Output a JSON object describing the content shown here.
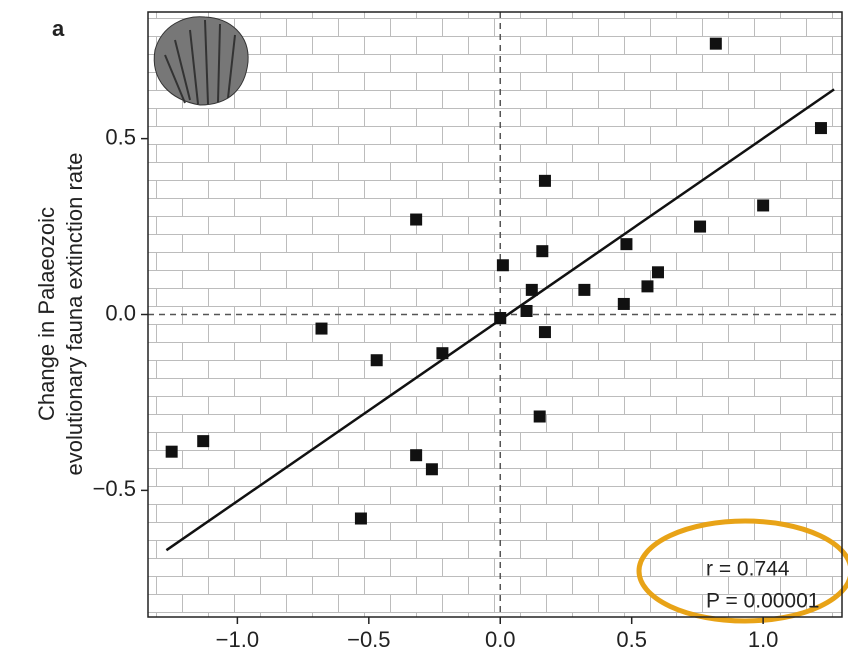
{
  "chart_data": {
    "type": "scatter",
    "panel_label": "a",
    "y_label": [
      "Change in Palaeozoic",
      "evolutionary fauna extinction rate"
    ],
    "x": [
      0.82,
      1.22,
      1.0,
      0.76,
      0.17,
      -0.32,
      0.16,
      0.48,
      0.01,
      0.6,
      0.32,
      0.12,
      0.56,
      0.47,
      0.1,
      0.0,
      0.17,
      -0.68,
      -0.22,
      -0.47,
      0.15,
      -1.13,
      -1.25,
      -0.32,
      -0.26,
      -0.53
    ],
    "y": [
      0.77,
      0.53,
      0.31,
      0.25,
      0.38,
      0.27,
      0.18,
      0.2,
      0.14,
      0.12,
      0.07,
      0.07,
      0.08,
      0.03,
      0.01,
      -0.01,
      -0.05,
      -0.04,
      -0.11,
      -0.13,
      -0.29,
      -0.36,
      -0.39,
      -0.4,
      -0.44,
      -0.58
    ],
    "color": "#111111",
    "fit_line": {
      "x": [
        -1.27,
        1.27
      ],
      "y": [
        -0.67,
        0.64
      ]
    },
    "reference_lines": {
      "x": 0,
      "y": 0
    },
    "xlim": [
      -1.34,
      1.3
    ],
    "ylim": [
      -0.86,
      0.86
    ],
    "xticks": [
      {
        "value": -1,
        "label": "−1.0"
      },
      {
        "value": -0.5,
        "label": "−0.5"
      },
      {
        "value": 0,
        "label": "0.0"
      },
      {
        "value": 0.5,
        "label": "0.5"
      },
      {
        "value": 1,
        "label": "1.0"
      }
    ],
    "yticks": [
      {
        "value": -0.5,
        "label": "−0.5"
      },
      {
        "value": 0,
        "label": "0.0"
      },
      {
        "value": 0.5,
        "label": "0.5"
      }
    ],
    "annotations": [
      "r = 0.744",
      "P = 0.00001"
    ]
  }
}
